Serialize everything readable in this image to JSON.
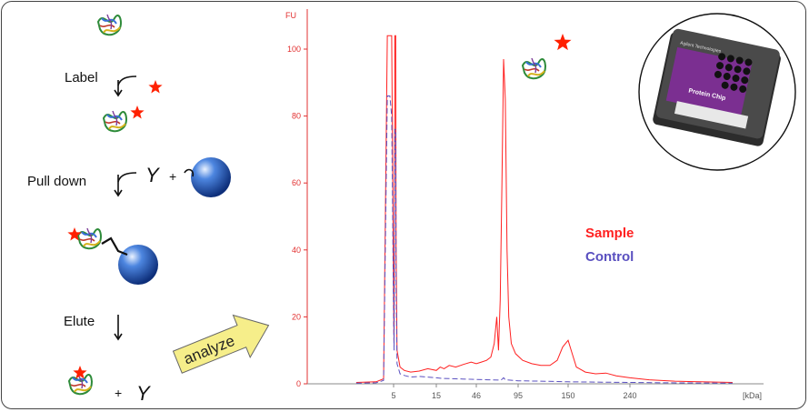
{
  "workflow": {
    "step_label": "Label",
    "step_pulldown": "Pull down",
    "step_elute": "Elute",
    "antibody_symbol": "Y",
    "plus": "+",
    "analyze_label": "analyze"
  },
  "chip": {
    "brand_text": "Agilent Technologies",
    "product_text": "Protein Chip"
  },
  "colors": {
    "sample": "#ff2020",
    "control": "#5a50c0",
    "star": "#ff2000",
    "bead": "#1b4fb8",
    "axis": "#e23030"
  },
  "chart_data": {
    "type": "line",
    "ylabel": "FU",
    "xunit": "[kDa]",
    "ylim": [
      0,
      105
    ],
    "yticks": [
      0,
      20,
      40,
      60,
      80,
      100
    ],
    "xtick_labels": [
      "5",
      "15",
      "46",
      "95",
      "150",
      "240"
    ],
    "grid": false,
    "legend": "center-right",
    "series": [
      {
        "name": "Sample",
        "points": [
          [
            2,
            0.4
          ],
          [
            3.6,
            0.6
          ],
          [
            4.2,
            1.5
          ],
          [
            4.5,
            104
          ],
          [
            4.7,
            104
          ],
          [
            4.85,
            104
          ],
          [
            5,
            25
          ],
          [
            5.1,
            12
          ],
          [
            5.3,
            104
          ],
          [
            5.5,
            104
          ],
          [
            5.6,
            40
          ],
          [
            5.8,
            10
          ],
          [
            6.5,
            5
          ],
          [
            7.5,
            4
          ],
          [
            9,
            3.5
          ],
          [
            11,
            3.8
          ],
          [
            13,
            4.5
          ],
          [
            15,
            4
          ],
          [
            18,
            5
          ],
          [
            21,
            4.5
          ],
          [
            25,
            5.5
          ],
          [
            30,
            5
          ],
          [
            36,
            5.8
          ],
          [
            42,
            6.5
          ],
          [
            46,
            6
          ],
          [
            52,
            6.5
          ],
          [
            58,
            7
          ],
          [
            63,
            8
          ],
          [
            67,
            12
          ],
          [
            70,
            20
          ],
          [
            72,
            10
          ],
          [
            74,
            25
          ],
          [
            76,
            60
          ],
          [
            78,
            97
          ],
          [
            80,
            85
          ],
          [
            82,
            40
          ],
          [
            84,
            20
          ],
          [
            87,
            12
          ],
          [
            92,
            9
          ],
          [
            100,
            7
          ],
          [
            110,
            6
          ],
          [
            120,
            5.5
          ],
          [
            130,
            5.5
          ],
          [
            138,
            7
          ],
          [
            144,
            11
          ],
          [
            150,
            13
          ],
          [
            156,
            9
          ],
          [
            162,
            5
          ],
          [
            175,
            3.5
          ],
          [
            190,
            3
          ],
          [
            205,
            3.2
          ],
          [
            220,
            2.4
          ],
          [
            240,
            1.8
          ],
          [
            270,
            1.2
          ],
          [
            310,
            0.8
          ],
          [
            350,
            0.6
          ],
          [
            400,
            0.4
          ]
        ]
      },
      {
        "name": "Control",
        "points": [
          [
            2,
            0.2
          ],
          [
            3.6,
            0.3
          ],
          [
            4.2,
            1
          ],
          [
            4.5,
            86
          ],
          [
            4.7,
            86
          ],
          [
            4.85,
            80
          ],
          [
            5,
            20
          ],
          [
            5.1,
            10
          ],
          [
            5.3,
            76
          ],
          [
            5.5,
            76
          ],
          [
            5.6,
            28
          ],
          [
            5.8,
            6
          ],
          [
            6.5,
            3
          ],
          [
            7.5,
            2.5
          ],
          [
            9,
            2
          ],
          [
            11,
            2.2
          ],
          [
            13,
            2
          ],
          [
            15,
            1.8
          ],
          [
            20,
            1.6
          ],
          [
            30,
            1.5
          ],
          [
            46,
            1.3
          ],
          [
            60,
            1.2
          ],
          [
            75,
            1.1
          ],
          [
            78,
            1.8
          ],
          [
            80,
            1.2
          ],
          [
            95,
            0.9
          ],
          [
            120,
            0.8
          ],
          [
            150,
            0.6
          ],
          [
            200,
            0.5
          ],
          [
            240,
            0.4
          ],
          [
            300,
            0.3
          ],
          [
            400,
            0.2
          ]
        ]
      }
    ]
  }
}
